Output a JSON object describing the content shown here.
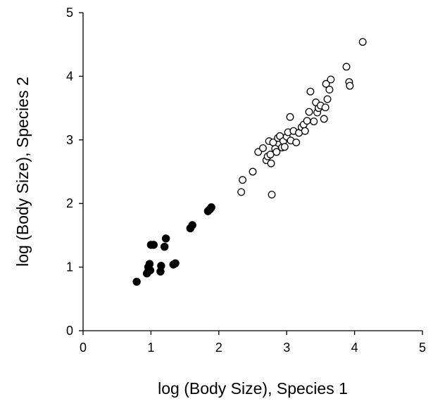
{
  "chart_data": {
    "type": "scatter",
    "title": "",
    "xlabel": "log (Body Size), Species 1",
    "ylabel": "log (Body Size), Species 2",
    "xlim": [
      0,
      5
    ],
    "ylim": [
      0,
      5
    ],
    "xticks": [
      "0",
      "1",
      "2",
      "3",
      "4",
      "5"
    ],
    "yticks": [
      "0",
      "1",
      "2",
      "3",
      "4",
      "5"
    ],
    "grid": false,
    "legend": "none",
    "series": [
      {
        "marker": "filled-circle",
        "color": "#000000",
        "points": [
          [
            0.79,
            0.77
          ],
          [
            0.94,
            0.9
          ],
          [
            0.96,
            0.93
          ],
          [
            0.99,
            0.95
          ],
          [
            0.96,
            1.0
          ],
          [
            0.98,
            1.05
          ],
          [
            1.0,
            1.35
          ],
          [
            1.04,
            1.35
          ],
          [
            1.14,
            0.93
          ],
          [
            1.15,
            1.02
          ],
          [
            1.2,
            1.32
          ],
          [
            1.22,
            1.45
          ],
          [
            1.33,
            1.04
          ],
          [
            1.36,
            1.06
          ],
          [
            1.58,
            1.61
          ],
          [
            1.61,
            1.66
          ],
          [
            1.84,
            1.88
          ],
          [
            1.87,
            1.91
          ],
          [
            1.89,
            1.94
          ]
        ]
      },
      {
        "marker": "open-circle",
        "color": "#000000",
        "points": [
          [
            2.33,
            2.18
          ],
          [
            2.35,
            2.37
          ],
          [
            2.5,
            2.5
          ],
          [
            2.58,
            2.81
          ],
          [
            2.65,
            2.87
          ],
          [
            2.7,
            2.68
          ],
          [
            2.72,
            2.74
          ],
          [
            2.74,
            2.98
          ],
          [
            2.76,
            2.77
          ],
          [
            2.77,
            2.63
          ],
          [
            2.78,
            2.14
          ],
          [
            2.8,
            2.96
          ],
          [
            2.83,
            2.86
          ],
          [
            2.85,
            2.81
          ],
          [
            2.87,
            3.03
          ],
          [
            2.9,
            3.06
          ],
          [
            2.93,
            2.88
          ],
          [
            2.95,
            2.98
          ],
          [
            2.97,
            2.89
          ],
          [
            3.0,
            3.05
          ],
          [
            3.02,
            3.12
          ],
          [
            3.05,
            3.36
          ],
          [
            3.06,
            2.99
          ],
          [
            3.1,
            3.14
          ],
          [
            3.14,
            2.96
          ],
          [
            3.18,
            3.11
          ],
          [
            3.22,
            3.2
          ],
          [
            3.25,
            3.24
          ],
          [
            3.27,
            3.14
          ],
          [
            3.3,
            3.3
          ],
          [
            3.33,
            3.44
          ],
          [
            3.35,
            3.76
          ],
          [
            3.4,
            3.29
          ],
          [
            3.43,
            3.59
          ],
          [
            3.45,
            3.43
          ],
          [
            3.47,
            3.5
          ],
          [
            3.5,
            3.54
          ],
          [
            3.55,
            3.33
          ],
          [
            3.57,
            3.51
          ],
          [
            3.58,
            3.88
          ],
          [
            3.6,
            3.64
          ],
          [
            3.63,
            3.79
          ],
          [
            3.65,
            3.95
          ],
          [
            3.88,
            4.15
          ],
          [
            3.92,
            3.91
          ],
          [
            3.93,
            3.85
          ],
          [
            4.12,
            4.54
          ]
        ]
      }
    ]
  }
}
